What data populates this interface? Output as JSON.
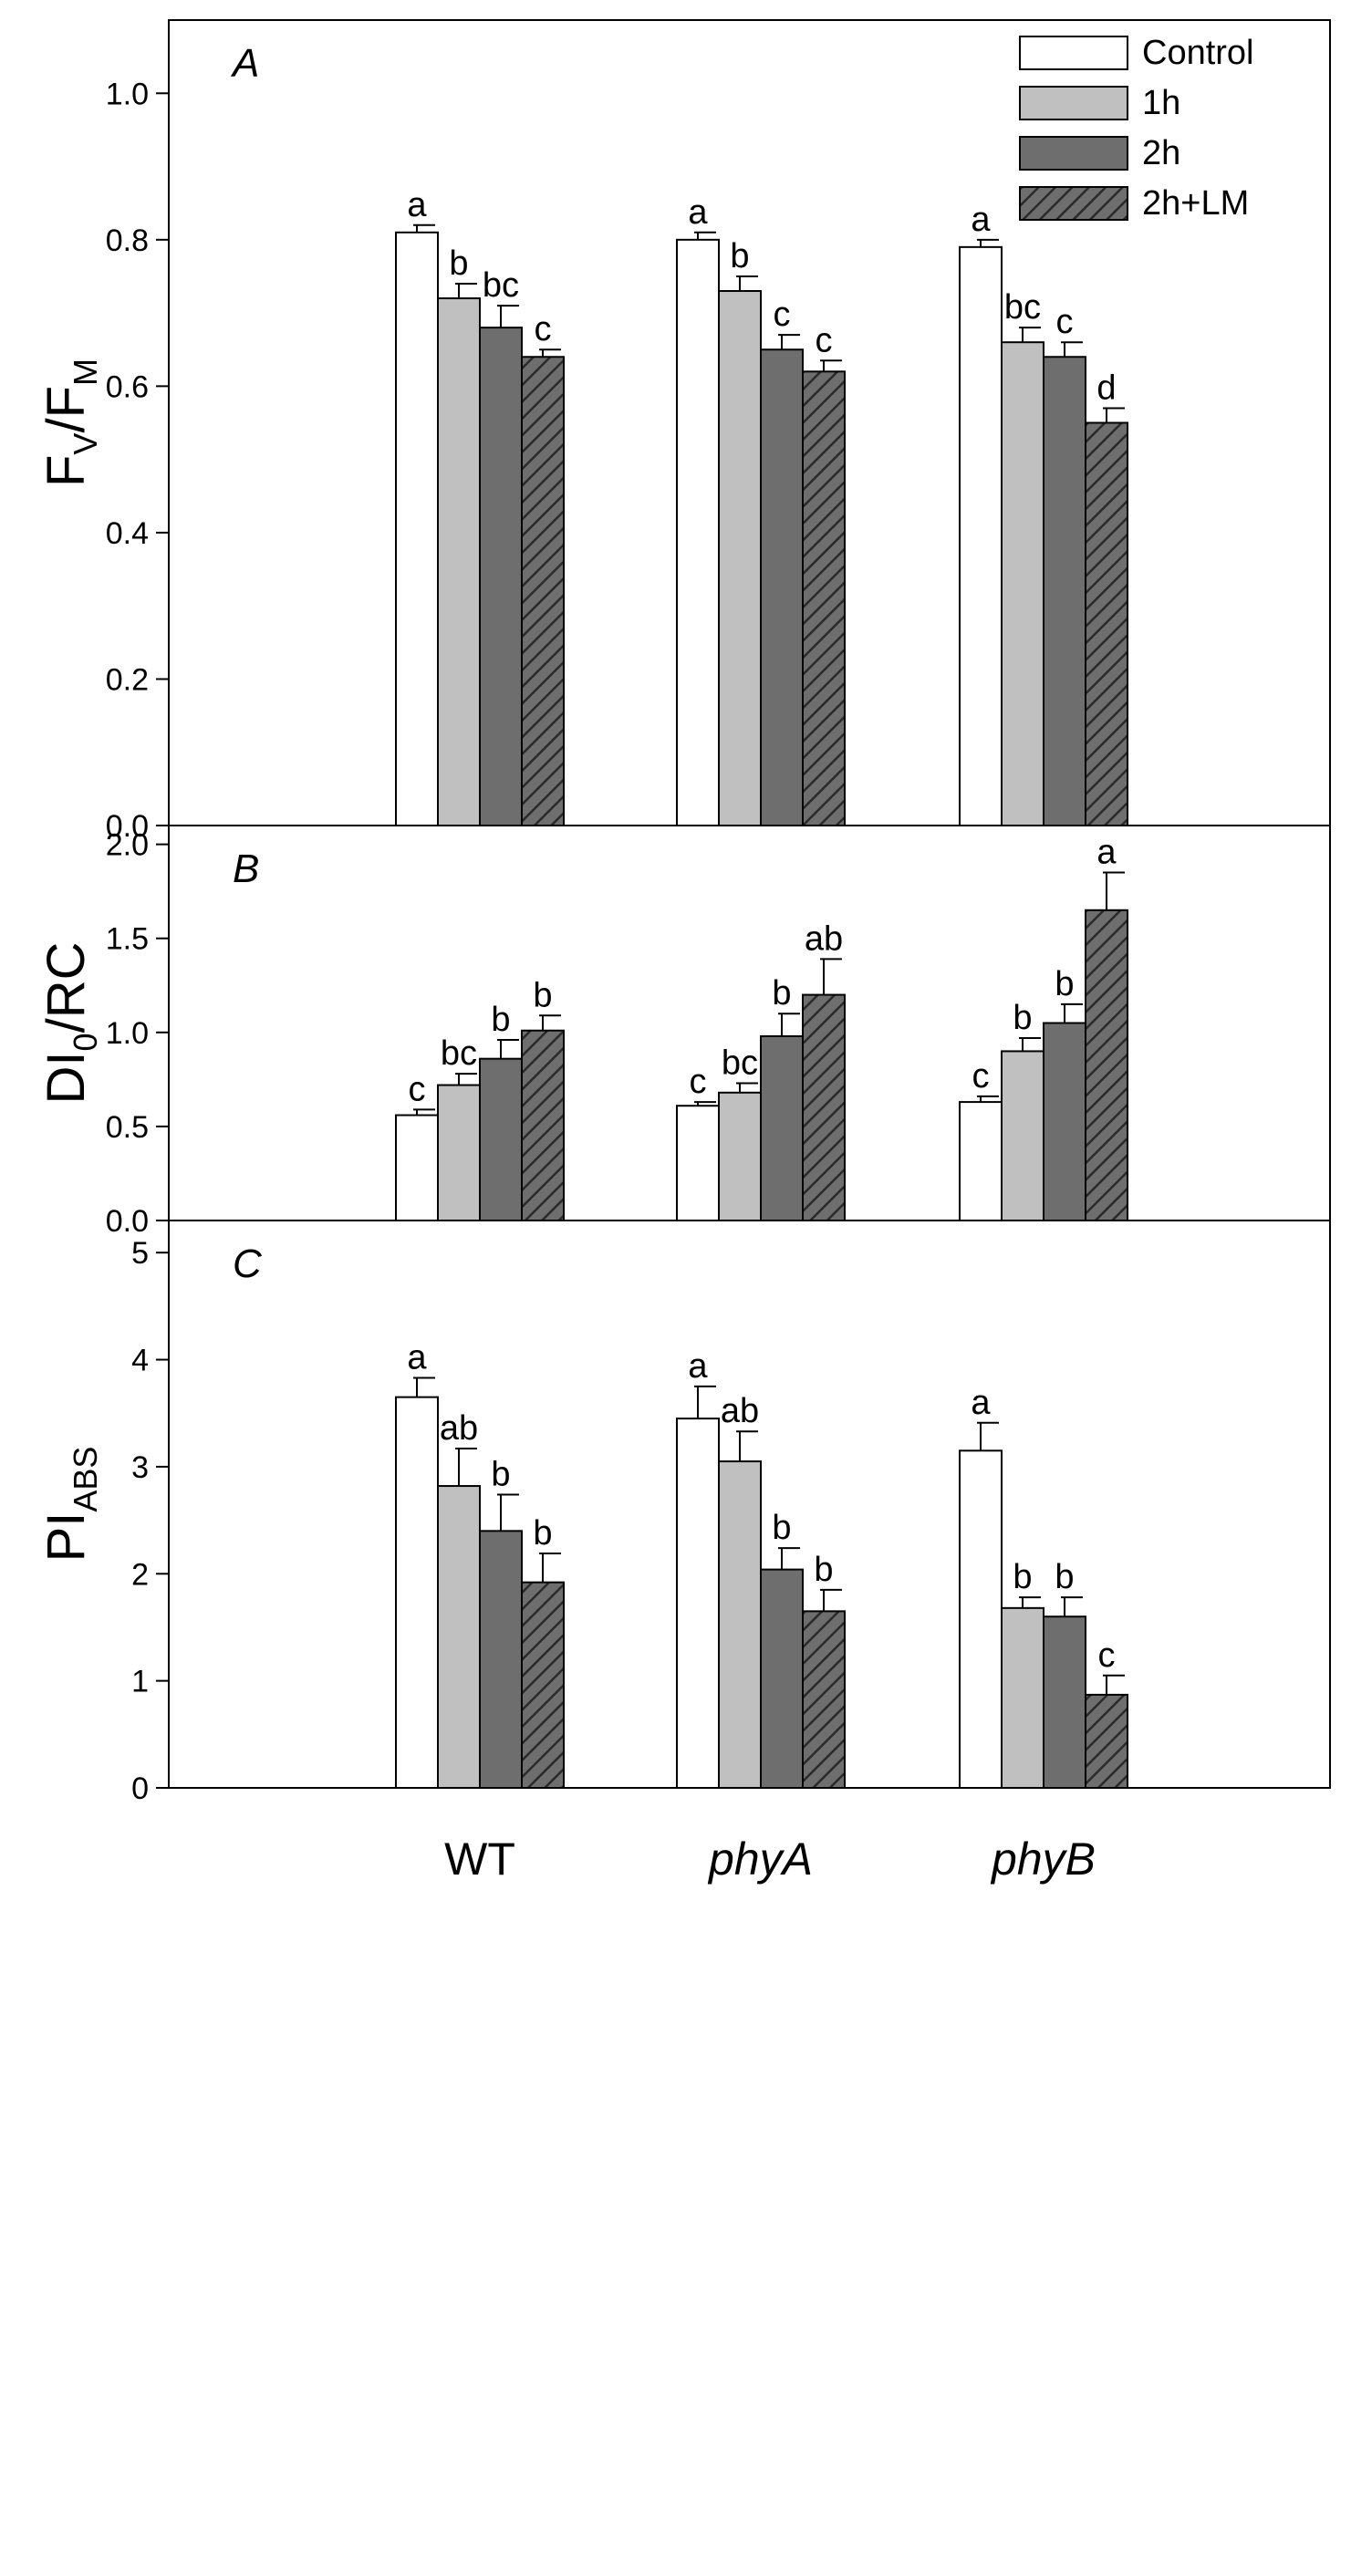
{
  "chart_data": [
    {
      "type": "bar",
      "panel_label": "A",
      "ylabel": {
        "main": "F",
        "sub1": "V",
        "mid": "/F",
        "sub2": "M"
      },
      "ylim": [
        0,
        1.1
      ],
      "yticks": [
        0.0,
        0.2,
        0.4,
        0.6,
        0.8,
        1.0
      ],
      "tick_decimals": 1,
      "categories": [
        "WT",
        "phyA",
        "phyB"
      ],
      "category_italic": [
        false,
        true,
        true
      ],
      "series": [
        {
          "name": "Control",
          "values": [
            0.81,
            0.8,
            0.79
          ],
          "errors": [
            0.01,
            0.01,
            0.01
          ],
          "letters": [
            "a",
            "a",
            "a"
          ]
        },
        {
          "name": "1h",
          "values": [
            0.72,
            0.73,
            0.66
          ],
          "errors": [
            0.02,
            0.02,
            0.02
          ],
          "letters": [
            "b",
            "b",
            "bc"
          ]
        },
        {
          "name": "2h",
          "values": [
            0.68,
            0.65,
            0.64
          ],
          "errors": [
            0.03,
            0.02,
            0.02
          ],
          "letters": [
            "bc",
            "c",
            "c"
          ]
        },
        {
          "name": "2h+LM",
          "values": [
            0.64,
            0.62,
            0.55
          ],
          "errors": [
            0.01,
            0.015,
            0.02
          ],
          "letters": [
            "c",
            "c",
            "d"
          ]
        }
      ],
      "legend": {
        "position": "top-right",
        "entries": [
          "Control",
          "1h",
          "2h",
          "2h+LM"
        ]
      },
      "grid": false
    },
    {
      "type": "bar",
      "panel_label": "B",
      "ylabel": {
        "main": "DI",
        "sub1": "0",
        "mid": "/RC",
        "sub2": ""
      },
      "ylim": [
        0,
        2.1
      ],
      "yticks": [
        0.0,
        0.5,
        1.0,
        1.5,
        2.0
      ],
      "tick_decimals": 1,
      "categories": [
        "WT",
        "phyA",
        "phyB"
      ],
      "series": [
        {
          "name": "Control",
          "values": [
            0.56,
            0.61,
            0.63
          ],
          "errors": [
            0.03,
            0.02,
            0.03
          ],
          "letters": [
            "c",
            "c",
            "c"
          ]
        },
        {
          "name": "1h",
          "values": [
            0.72,
            0.68,
            0.9
          ],
          "errors": [
            0.06,
            0.05,
            0.07
          ],
          "letters": [
            "bc",
            "bc",
            "b"
          ]
        },
        {
          "name": "2h",
          "values": [
            0.86,
            0.98,
            1.05
          ],
          "errors": [
            0.1,
            0.12,
            0.1
          ],
          "letters": [
            "b",
            "b",
            "b"
          ]
        },
        {
          "name": "2h+LM",
          "values": [
            1.01,
            1.2,
            1.65
          ],
          "errors": [
            0.08,
            0.19,
            0.2
          ],
          "letters": [
            "b",
            "ab",
            "a"
          ]
        }
      ],
      "grid": false
    },
    {
      "type": "bar",
      "panel_label": "C",
      "ylabel": {
        "main": "PI",
        "sub1": "ABS",
        "mid": "",
        "sub2": ""
      },
      "ylim": [
        0,
        5.3
      ],
      "yticks": [
        0,
        1,
        2,
        3,
        4,
        5
      ],
      "tick_decimals": 0,
      "categories": [
        "WT",
        "phyA",
        "phyB"
      ],
      "series": [
        {
          "name": "Control",
          "values": [
            3.65,
            3.45,
            3.15
          ],
          "errors": [
            0.18,
            0.3,
            0.26
          ],
          "letters": [
            "a",
            "a",
            "a"
          ]
        },
        {
          "name": "1h",
          "values": [
            2.82,
            3.05,
            1.68
          ],
          "errors": [
            0.35,
            0.28,
            0.1
          ],
          "letters": [
            "ab",
            "ab",
            "b"
          ]
        },
        {
          "name": "2h",
          "values": [
            2.4,
            2.04,
            1.6
          ],
          "errors": [
            0.34,
            0.2,
            0.18
          ],
          "letters": [
            "b",
            "b",
            "b"
          ]
        },
        {
          "name": "2h+LM",
          "values": [
            1.92,
            1.65,
            0.87
          ],
          "errors": [
            0.27,
            0.2,
            0.18
          ],
          "letters": [
            "b",
            "b",
            "c"
          ]
        }
      ],
      "grid": false
    }
  ],
  "colors": {
    "Control": "#ffffff",
    "1h": "#c0c0c0",
    "2h": "#6e6e6e",
    "2h+LM": "#6e6e6e",
    "hatch": "#2a2a2a",
    "axis": "#000000"
  }
}
